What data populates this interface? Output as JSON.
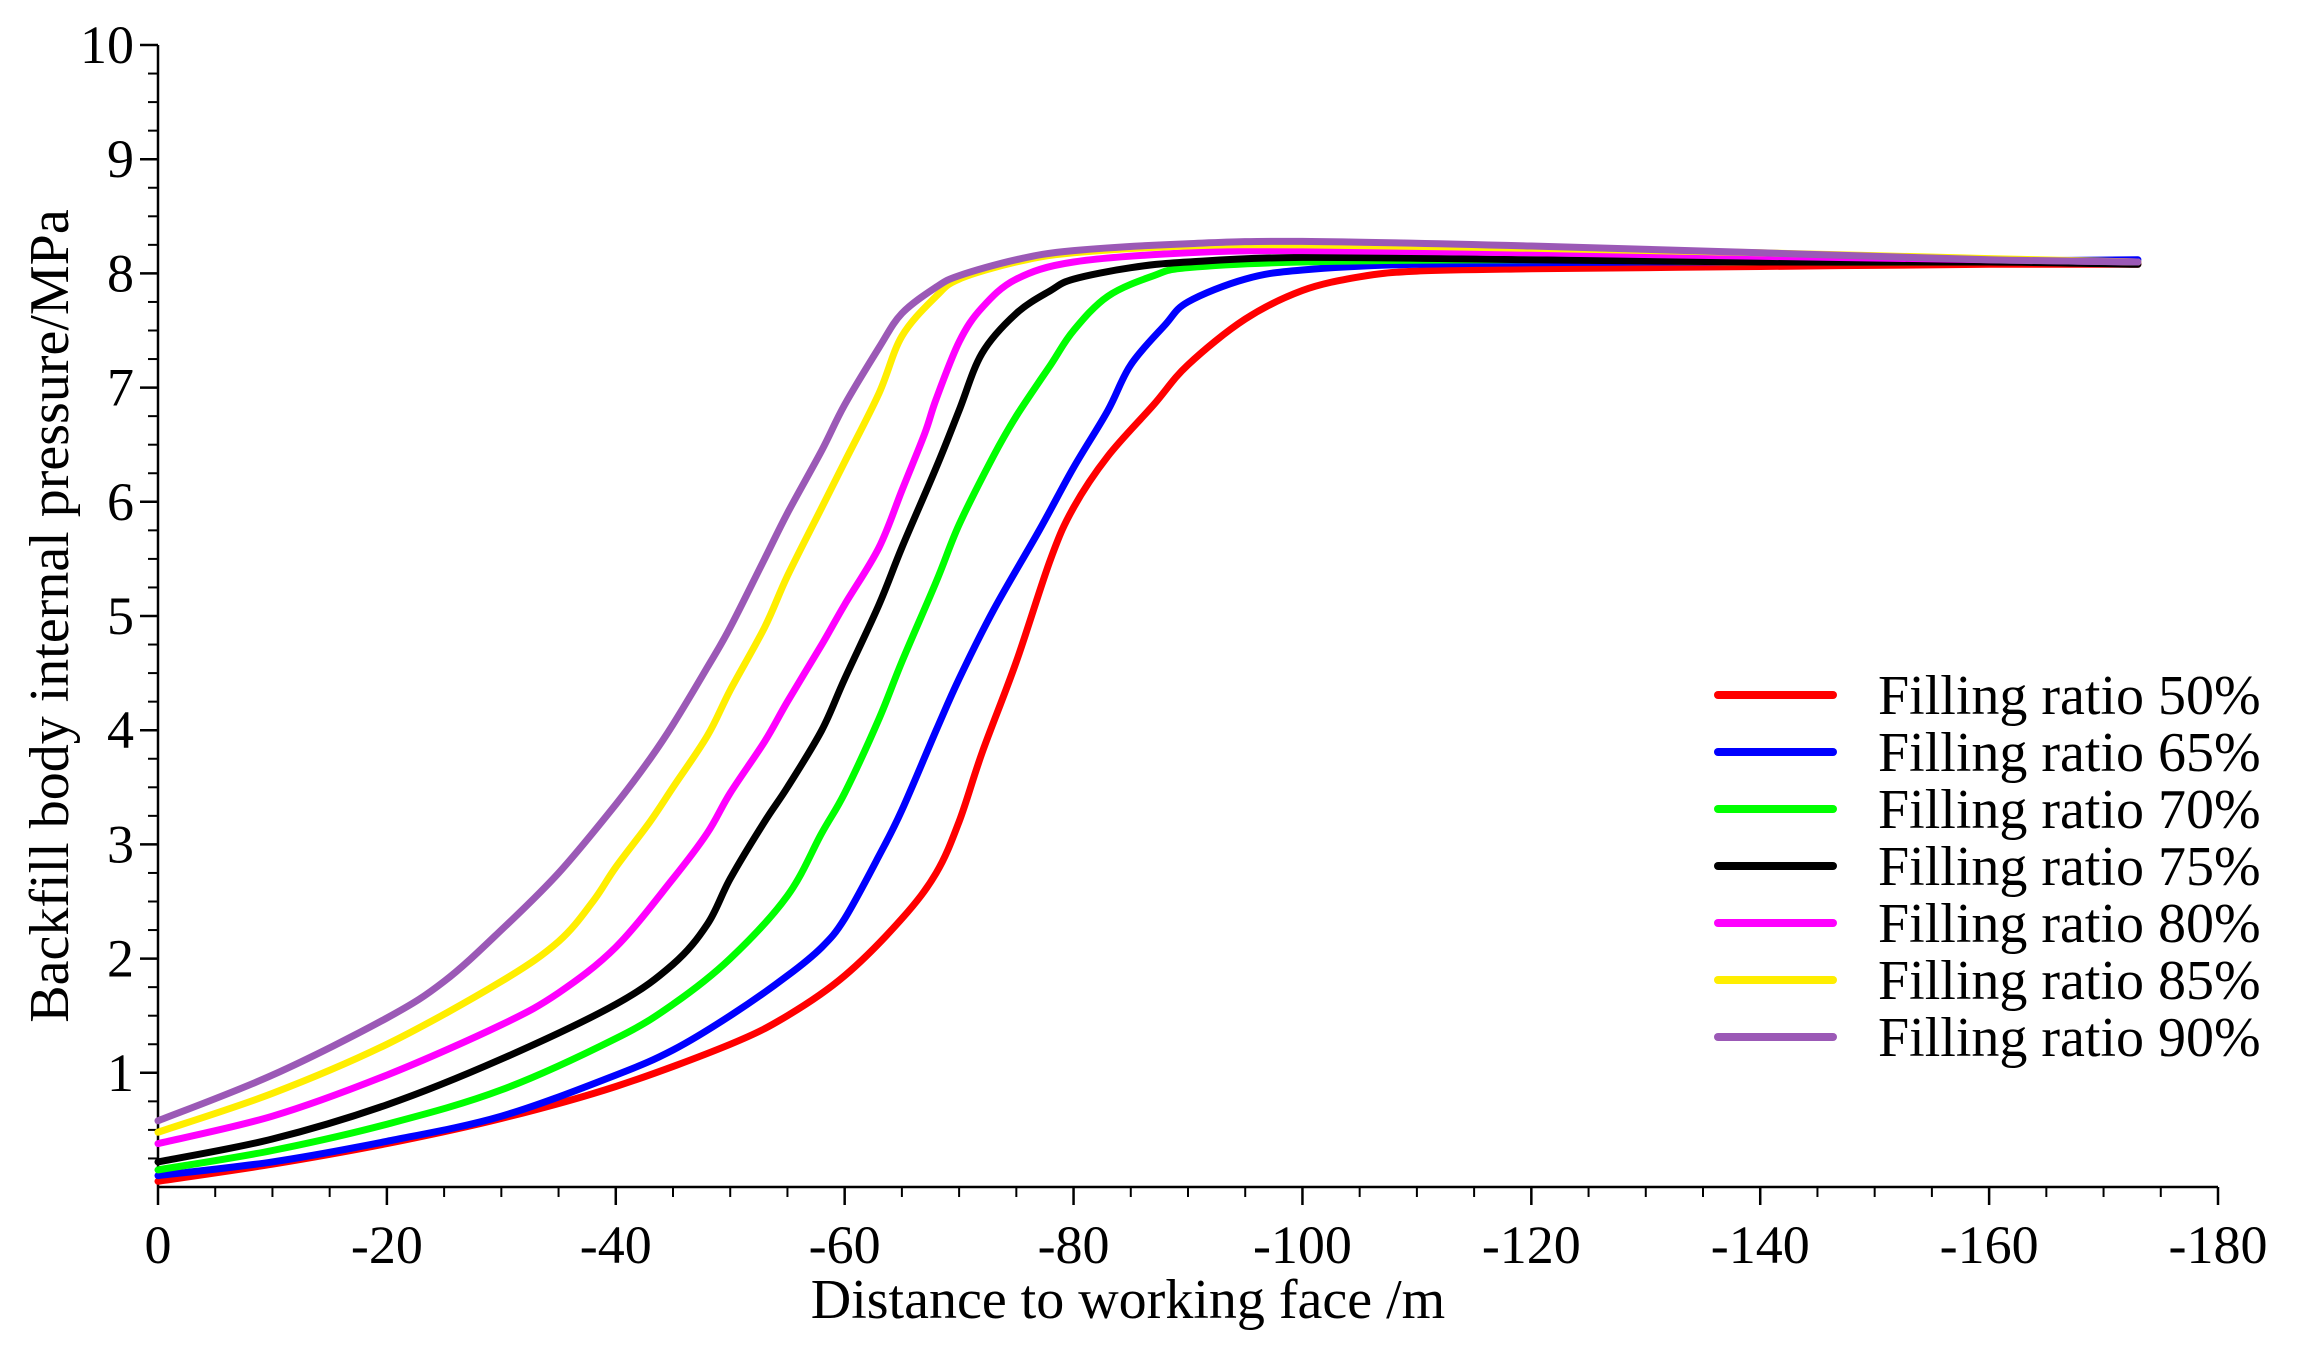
{
  "chart_data": {
    "type": "line",
    "title": "",
    "xlabel": "Distance to working face /m",
    "ylabel": "Backfill body internal pressure/MPa",
    "xlim": [
      0,
      -180
    ],
    "ylim": [
      0,
      10
    ],
    "x_ticks": [
      "0",
      "-20",
      "-40",
      "-60",
      "-80",
      "-100",
      "-120",
      "-140",
      "-160",
      "-180"
    ],
    "y_ticks": [
      "1",
      "2",
      "3",
      "4",
      "5",
      "6",
      "7",
      "8",
      "9",
      "10"
    ],
    "grid": false,
    "legend_position": "right",
    "series": [
      {
        "name": "Filling ratio 50%",
        "color": "#ff0000",
        "points": [
          [
            0,
            0.05
          ],
          [
            -10,
            0.2
          ],
          [
            -20,
            0.38
          ],
          [
            -30,
            0.6
          ],
          [
            -40,
            0.88
          ],
          [
            -50,
            1.25
          ],
          [
            -55,
            1.5
          ],
          [
            -60,
            1.85
          ],
          [
            -65,
            2.35
          ],
          [
            -68,
            2.75
          ],
          [
            -70,
            3.2
          ],
          [
            -72,
            3.8
          ],
          [
            -75,
            4.6
          ],
          [
            -78,
            5.5
          ],
          [
            -80,
            5.95
          ],
          [
            -83,
            6.4
          ],
          [
            -87,
            6.85
          ],
          [
            -90,
            7.2
          ],
          [
            -95,
            7.6
          ],
          [
            -100,
            7.85
          ],
          [
            -105,
            7.97
          ],
          [
            -110,
            8.02
          ],
          [
            -120,
            8.04
          ],
          [
            -140,
            8.06
          ],
          [
            -160,
            8.08
          ],
          [
            -173,
            8.08
          ]
        ]
      },
      {
        "name": "Filling ratio 65%",
        "color": "#0000ff",
        "points": [
          [
            0,
            0.1
          ],
          [
            -10,
            0.22
          ],
          [
            -20,
            0.4
          ],
          [
            -30,
            0.62
          ],
          [
            -40,
            0.98
          ],
          [
            -45,
            1.2
          ],
          [
            -50,
            1.5
          ],
          [
            -55,
            1.85
          ],
          [
            -58,
            2.1
          ],
          [
            -60,
            2.35
          ],
          [
            -63,
            2.9
          ],
          [
            -65,
            3.3
          ],
          [
            -68,
            4.0
          ],
          [
            -70,
            4.45
          ],
          [
            -73,
            5.05
          ],
          [
            -77,
            5.75
          ],
          [
            -80,
            6.3
          ],
          [
            -83,
            6.8
          ],
          [
            -85,
            7.2
          ],
          [
            -88,
            7.55
          ],
          [
            -90,
            7.75
          ],
          [
            -95,
            7.95
          ],
          [
            -100,
            8.03
          ],
          [
            -110,
            8.08
          ],
          [
            -130,
            8.1
          ],
          [
            -150,
            8.1
          ],
          [
            -173,
            8.12
          ]
        ]
      },
      {
        "name": "Filling ratio 70%",
        "color": "#00ff00",
        "points": [
          [
            0,
            0.15
          ],
          [
            -10,
            0.32
          ],
          [
            -20,
            0.55
          ],
          [
            -30,
            0.85
          ],
          [
            -40,
            1.3
          ],
          [
            -45,
            1.6
          ],
          [
            -50,
            2.0
          ],
          [
            -55,
            2.55
          ],
          [
            -58,
            3.1
          ],
          [
            -60,
            3.45
          ],
          [
            -63,
            4.1
          ],
          [
            -65,
            4.6
          ],
          [
            -68,
            5.3
          ],
          [
            -70,
            5.8
          ],
          [
            -73,
            6.4
          ],
          [
            -75,
            6.75
          ],
          [
            -78,
            7.2
          ],
          [
            -80,
            7.5
          ],
          [
            -83,
            7.8
          ],
          [
            -87,
            7.98
          ],
          [
            -90,
            8.05
          ],
          [
            -100,
            8.1
          ],
          [
            -120,
            8.12
          ],
          [
            -140,
            8.1
          ],
          [
            -160,
            8.1
          ],
          [
            -173,
            8.1
          ]
        ]
      },
      {
        "name": "Filling ratio 75%",
        "color": "#000000",
        "points": [
          [
            0,
            0.22
          ],
          [
            -10,
            0.42
          ],
          [
            -20,
            0.72
          ],
          [
            -30,
            1.12
          ],
          [
            -40,
            1.6
          ],
          [
            -45,
            1.95
          ],
          [
            -48,
            2.3
          ],
          [
            -50,
            2.7
          ],
          [
            -53,
            3.2
          ],
          [
            -55,
            3.5
          ],
          [
            -58,
            4.0
          ],
          [
            -60,
            4.45
          ],
          [
            -63,
            5.1
          ],
          [
            -65,
            5.6
          ],
          [
            -68,
            6.3
          ],
          [
            -70,
            6.8
          ],
          [
            -72,
            7.3
          ],
          [
            -75,
            7.65
          ],
          [
            -78,
            7.85
          ],
          [
            -80,
            7.95
          ],
          [
            -85,
            8.05
          ],
          [
            -90,
            8.1
          ],
          [
            -100,
            8.14
          ],
          [
            -120,
            8.12
          ],
          [
            -140,
            8.1
          ],
          [
            -160,
            8.1
          ],
          [
            -173,
            8.08
          ]
        ]
      },
      {
        "name": "Filling ratio 80%",
        "color": "#ff00ff",
        "points": [
          [
            0,
            0.38
          ],
          [
            -10,
            0.62
          ],
          [
            -20,
            0.98
          ],
          [
            -30,
            1.42
          ],
          [
            -35,
            1.7
          ],
          [
            -40,
            2.1
          ],
          [
            -45,
            2.7
          ],
          [
            -48,
            3.1
          ],
          [
            -50,
            3.45
          ],
          [
            -53,
            3.9
          ],
          [
            -55,
            4.25
          ],
          [
            -58,
            4.75
          ],
          [
            -60,
            5.1
          ],
          [
            -63,
            5.6
          ],
          [
            -65,
            6.1
          ],
          [
            -67,
            6.6
          ],
          [
            -68,
            6.9
          ],
          [
            -70,
            7.4
          ],
          [
            -72,
            7.7
          ],
          [
            -75,
            7.95
          ],
          [
            -80,
            8.1
          ],
          [
            -90,
            8.18
          ],
          [
            -100,
            8.2
          ],
          [
            -120,
            8.18
          ],
          [
            -140,
            8.15
          ],
          [
            -160,
            8.12
          ],
          [
            -173,
            8.1
          ]
        ]
      },
      {
        "name": "Filling ratio 85%",
        "color": "#ffee00",
        "points": [
          [
            0,
            0.48
          ],
          [
            -10,
            0.82
          ],
          [
            -20,
            1.25
          ],
          [
            -30,
            1.8
          ],
          [
            -35,
            2.15
          ],
          [
            -38,
            2.5
          ],
          [
            -40,
            2.8
          ],
          [
            -43,
            3.2
          ],
          [
            -45,
            3.5
          ],
          [
            -48,
            3.95
          ],
          [
            -50,
            4.35
          ],
          [
            -53,
            4.9
          ],
          [
            -55,
            5.35
          ],
          [
            -58,
            5.95
          ],
          [
            -60,
            6.35
          ],
          [
            -63,
            6.95
          ],
          [
            -65,
            7.45
          ],
          [
            -68,
            7.8
          ],
          [
            -70,
            7.95
          ],
          [
            -75,
            8.1
          ],
          [
            -80,
            8.18
          ],
          [
            -90,
            8.24
          ],
          [
            -100,
            8.25
          ],
          [
            -120,
            8.22
          ],
          [
            -140,
            8.18
          ],
          [
            -160,
            8.13
          ],
          [
            -173,
            8.1
          ]
        ]
      },
      {
        "name": "Filling ratio 90%",
        "color": "#9b59b6",
        "points": [
          [
            0,
            0.58
          ],
          [
            -10,
            0.98
          ],
          [
            -20,
            1.48
          ],
          [
            -25,
            1.8
          ],
          [
            -30,
            2.25
          ],
          [
            -35,
            2.75
          ],
          [
            -40,
            3.35
          ],
          [
            -43,
            3.75
          ],
          [
            -45,
            4.05
          ],
          [
            -48,
            4.55
          ],
          [
            -50,
            4.9
          ],
          [
            -53,
            5.5
          ],
          [
            -55,
            5.9
          ],
          [
            -58,
            6.45
          ],
          [
            -60,
            6.85
          ],
          [
            -63,
            7.35
          ],
          [
            -65,
            7.65
          ],
          [
            -68,
            7.88
          ],
          [
            -70,
            7.98
          ],
          [
            -75,
            8.12
          ],
          [
            -80,
            8.2
          ],
          [
            -90,
            8.26
          ],
          [
            -100,
            8.28
          ],
          [
            -120,
            8.24
          ],
          [
            -140,
            8.18
          ],
          [
            -160,
            8.12
          ],
          [
            -173,
            8.1
          ]
        ]
      }
    ]
  }
}
